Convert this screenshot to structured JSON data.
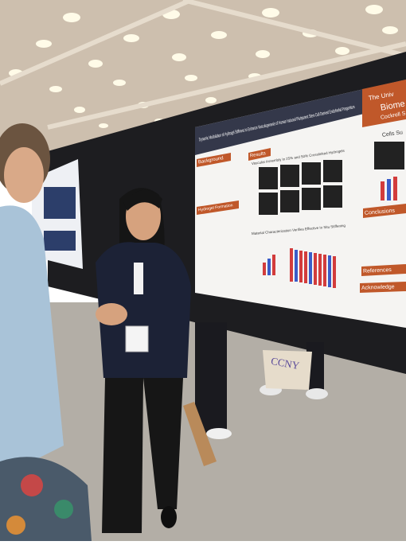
{
  "poster": {
    "title": "Dynamic Modulation of Hydrogel Stiffness to Enhance Vasculogenesis of Human Induced Pluripotent Stem Cell Derived Endothelial Progenitors",
    "logo": [
      "The Univ",
      "Biome",
      "Cockrell S"
    ],
    "sections": {
      "background": "Background",
      "results": "Results",
      "hydrogel": "Hydrogel Formation",
      "cells": "Cells Su",
      "conclusions": "Conclusions",
      "references": "References",
      "acknowledgements": "Acknowledge"
    },
    "figure_titles": [
      "Vascular Assembly in 25% and 50% Crosslinked Hydrogels",
      "Material Characterization Verifies Effective In Situ Stiffening"
    ]
  },
  "bag_text": "CCNY"
}
